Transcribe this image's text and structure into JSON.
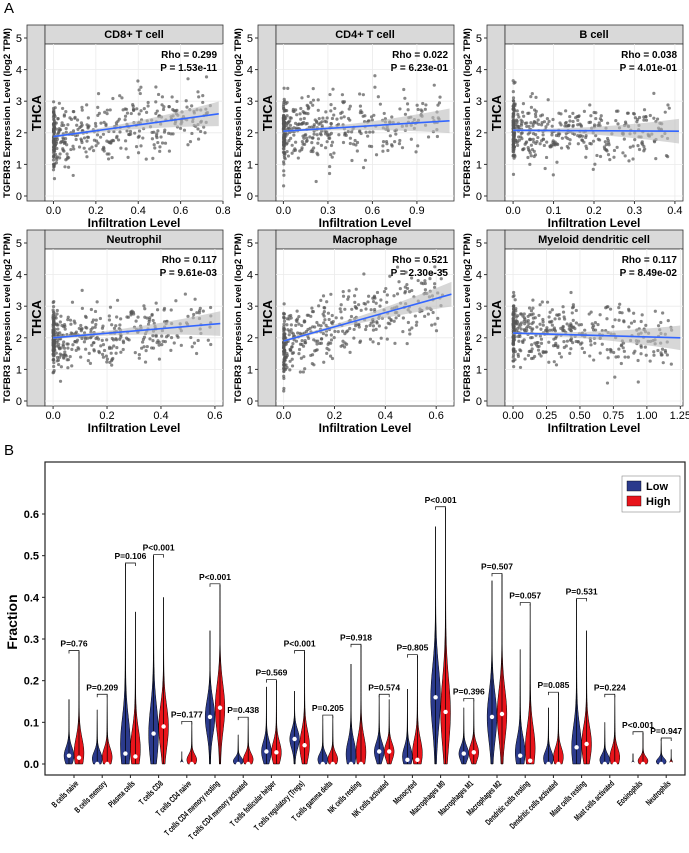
{
  "panel_labels": {
    "a": "A",
    "b": "B"
  },
  "chart_data": [
    {
      "type": "scatter",
      "panel": "A",
      "row_strip": "THCA",
      "ylabel": "TGFBR3 Expression Level (log2 TPM)",
      "xlabel": "Infiltration Level",
      "ylim": [
        0,
        5
      ],
      "yticks": [
        "0",
        "1",
        "2",
        "3",
        "4",
        "5"
      ],
      "point_color": "#555555",
      "fit_color": "#3366ff",
      "band_color": "#bdbdbd",
      "strip_color": "#d9d9d9",
      "grid": true,
      "facets": [
        {
          "title": "CD8+ T cell",
          "rho": "Rho = 0.299",
          "p": "P = 1.53e-11",
          "xlim": [
            -0.04,
            0.8
          ],
          "xticks": [
            0.0,
            0.2,
            0.4,
            0.6,
            0.8
          ],
          "xtick_labels": [
            "0.0",
            "0.2",
            "0.4",
            "0.6",
            "0.8"
          ],
          "fit": {
            "x": [
              0,
              0.78
            ],
            "y": [
              1.88,
              2.6
            ]
          }
        },
        {
          "title": "CD4+ T cell",
          "rho": "Rho = 0.022",
          "p": "P = 6.23e-01",
          "xlim": [
            -0.05,
            1.15
          ],
          "xticks": [
            0.0,
            0.3,
            0.6,
            0.9
          ],
          "xtick_labels": [
            "0.0",
            "0.3",
            "0.6",
            "0.9"
          ],
          "fit": {
            "x": [
              0,
              1.12
            ],
            "y": [
              2.05,
              2.38
            ]
          }
        },
        {
          "title": "B cell",
          "rho": "Rho = 0.038",
          "p": "P = 4.01e-01",
          "xlim": [
            -0.02,
            0.42
          ],
          "xticks": [
            0.0,
            0.1,
            0.2,
            0.3,
            0.4
          ],
          "xtick_labels": [
            "0.0",
            "0.1",
            "0.2",
            "0.3",
            "0.4"
          ],
          "fit": {
            "x": [
              0,
              0.41
            ],
            "y": [
              2.08,
              2.05
            ]
          }
        },
        {
          "title": "Neutrophil",
          "rho": "Rho = 0.117",
          "p": "P = 9.61e-03",
          "xlim": [
            -0.03,
            0.63
          ],
          "xticks": [
            0.0,
            0.2,
            0.4,
            0.6
          ],
          "xtick_labels": [
            "0.0",
            "0.2",
            "0.4",
            "0.6"
          ],
          "fit": {
            "x": [
              0,
              0.62
            ],
            "y": [
              2.0,
              2.45
            ]
          }
        },
        {
          "title": "Macrophage",
          "rho": "Rho = 0.521",
          "p": "P = 2.30e-35",
          "xlim": [
            -0.03,
            0.67
          ],
          "xticks": [
            0.0,
            0.2,
            0.4,
            0.6
          ],
          "xtick_labels": [
            "0.0",
            "0.2",
            "0.4",
            "0.6"
          ],
          "fit": {
            "x": [
              0,
              0.66
            ],
            "y": [
              1.9,
              3.38
            ]
          }
        },
        {
          "title": "Myeloid dendritic cell",
          "rho": "Rho = 0.117",
          "p": "P = 8.49e-02",
          "xlim": [
            -0.06,
            1.27
          ],
          "xticks": [
            0.0,
            0.25,
            0.5,
            0.75,
            1.0,
            1.25
          ],
          "xtick_labels": [
            "0.00",
            "0.25",
            "0.50",
            "0.75",
            "1.00",
            "1.25"
          ],
          "fit": {
            "x": [
              0,
              1.25
            ],
            "y": [
              2.15,
              2.0
            ]
          }
        }
      ]
    },
    {
      "type": "violin",
      "panel": "B",
      "ylabel": "Fraction",
      "ylim": [
        0,
        0.62
      ],
      "yticks": [
        "0.0",
        "0.1",
        "0.2",
        "0.3",
        "0.4",
        "0.5",
        "0.6"
      ],
      "legend": {
        "position": "top-right",
        "entries": [
          {
            "name": "Low",
            "color": "#2b3a8c"
          },
          {
            "name": "High",
            "color": "#e8141b"
          }
        ]
      },
      "categories": [
        "B cells naive",
        "B cells memory",
        "Plasma cells",
        "T cells CD8",
        "T cells CD4 naive",
        "T cells CD4 memory resting",
        "T cells CD4 memory activated",
        "T cells follicular helper",
        "T cells regulatory (Tregs)",
        "T cells gamma delta",
        "NK cells resting",
        "NK cells activated",
        "Monocyted",
        "Macrophages M0",
        "Macrophages M1",
        "Macrophages M2",
        "Dendritic cells resting",
        "Dendritic cells activated",
        "Mast cells resting",
        "Mast cells activated",
        "Eosinophils",
        "Neutrophils"
      ],
      "p_values": [
        "P=0.76",
        "P=0.209",
        "P=0.106",
        "P<0.001",
        "P=0.177",
        "P<0.001",
        "P=0.438",
        "P=0.569",
        "P<0.001",
        "P=0.205",
        "P=0.918",
        "P=0.574",
        "P=0.805",
        "P<0.001",
        "P=0.396",
        "P=0.507",
        "P=0.057",
        "P=0.085",
        "P=0.531",
        "P=0.224",
        "P<0.001",
        "P=0.947"
      ],
      "series": [
        {
          "name": "Low",
          "max": [
            0.155,
            0.13,
            0.48,
            0.5,
            0.03,
            0.32,
            0.07,
            0.185,
            0.175,
            0.11,
            0.24,
            0.165,
            0.18,
            0.57,
            0.135,
            0.44,
            0.275,
            0.135,
            0.395,
            0.1,
            0.025,
            0.06
          ],
          "median": [
            0.02,
            0,
            0.025,
            0.073,
            0,
            0.113,
            0,
            0.03,
            0.06,
            0,
            0,
            0.03,
            0.01,
            0.16,
            0.025,
            0.113,
            0.02,
            0,
            0.04,
            0,
            0,
            0
          ]
        },
        {
          "name": "High",
          "max": [
            0.27,
            0.165,
            0.365,
            0.4,
            0.1,
            0.43,
            0.11,
            0.2,
            0.27,
            0.115,
            0.285,
            0.155,
            0.26,
            0.615,
            0.155,
            0.455,
            0.385,
            0.17,
            0.32,
            0.165,
            0.075,
            0.035
          ],
          "median": [
            0.015,
            0,
            0.018,
            0.09,
            0,
            0.135,
            0,
            0.028,
            0.045,
            0,
            0,
            0.03,
            0.01,
            0.125,
            0.028,
            0.12,
            0.008,
            0,
            0.048,
            0,
            0,
            0
          ]
        }
      ]
    }
  ]
}
